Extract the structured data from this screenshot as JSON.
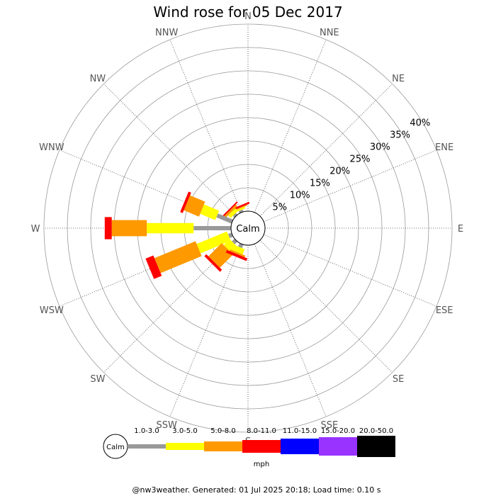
{
  "chart_data": {
    "type": "wind-rose",
    "title": "Wind rose for 05 Dec 2017",
    "directions": [
      "N",
      "NNE",
      "NE",
      "ENE",
      "E",
      "ESE",
      "SE",
      "SSE",
      "S",
      "SSW",
      "SW",
      "WSW",
      "W",
      "WNW",
      "NW",
      "NNW"
    ],
    "rings": [
      5,
      10,
      15,
      20,
      25,
      30,
      35,
      40
    ],
    "ring_label_suffix": "%",
    "rmax": 40,
    "calm_label": "Calm",
    "grid": true,
    "units": "mph",
    "bins": [
      {
        "label": "1.0-3.0",
        "color": "#999999"
      },
      {
        "label": "3.0-5.0",
        "color": "#ffff00"
      },
      {
        "label": "5.0-8.0",
        "color": "#ff9900"
      },
      {
        "label": "8.0-11.0",
        "color": "#ff0000"
      },
      {
        "label": "11.0-15.0",
        "color": "#0000ff"
      },
      {
        "label": "15.0-20.0",
        "color": "#9933ff"
      },
      {
        "label": "20.0-50.0",
        "color": "#000000"
      }
    ],
    "series": [
      {
        "direction": "NNW",
        "values": [
          0.5,
          0.4,
          0.2,
          0.4,
          0,
          0,
          0
        ]
      },
      {
        "direction": "NW",
        "values": [
          0.5,
          0.8,
          0.5,
          0.3,
          0,
          0,
          0
        ]
      },
      {
        "direction": "WNW",
        "values": [
          3.5,
          3.5,
          3.5,
          0.6,
          0,
          0,
          0
        ]
      },
      {
        "direction": "W",
        "values": [
          8.0,
          10.0,
          7.5,
          1.5,
          0,
          0,
          0
        ]
      },
      {
        "direction": "WSW",
        "values": [
          0.8,
          7.0,
          9.5,
          1.8,
          0,
          0,
          0
        ]
      },
      {
        "direction": "SW",
        "values": [
          0.8,
          1.8,
          4.0,
          0.6,
          0,
          0,
          0
        ]
      },
      {
        "direction": "SSW",
        "values": [
          0.8,
          1.2,
          0.4,
          0.6,
          0,
          0,
          0
        ]
      }
    ]
  },
  "footer": "@nw3weather. Generated: 01 Jul 2025 20:18; Load time: 0.10 s"
}
